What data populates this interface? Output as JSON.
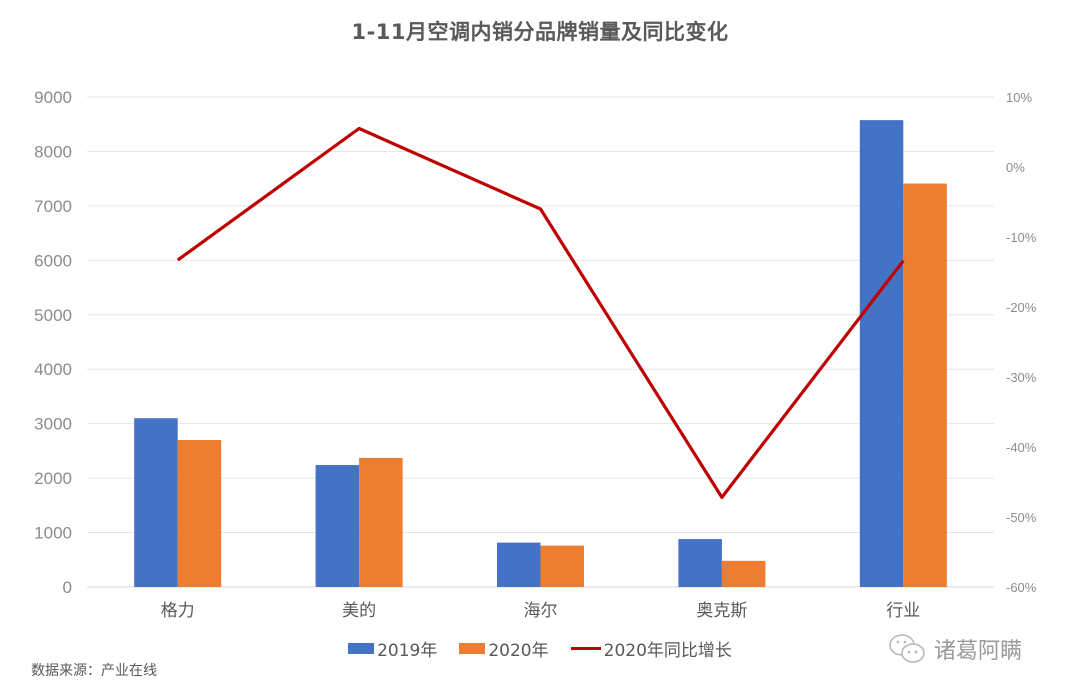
{
  "chart_data": {
    "type": "bar+line",
    "title": "1-11月空调内销分品牌销量及同比变化",
    "categories": [
      "格力",
      "美的",
      "海尔",
      "奥克斯",
      "行业"
    ],
    "series": [
      {
        "name": "2019年",
        "type": "bar",
        "axis": "left",
        "color": "#4472C4",
        "values": [
          3100,
          2240,
          815,
          880,
          8575
        ]
      },
      {
        "name": "2020年",
        "type": "bar",
        "axis": "left",
        "color": "#ED7D31",
        "values": [
          2700,
          2370,
          760,
          480,
          7410
        ]
      },
      {
        "name": "2020年同比增长",
        "type": "line",
        "axis": "right",
        "color": "#C00000",
        "values": [
          -13.3,
          5.5,
          -6.0,
          -47.2,
          -13.4
        ],
        "unit": "%"
      }
    ],
    "left_axis": {
      "min": 0,
      "max": 9000,
      "step": 1000,
      "ticks": [
        "9000",
        "8000",
        "7000",
        "6000",
        "5000",
        "4000",
        "3000",
        "2000",
        "1000",
        "0"
      ]
    },
    "right_axis": {
      "min": -60,
      "max": 10,
      "step": 10,
      "ticks": [
        "10%",
        "0%",
        "-10%",
        "-20%",
        "-30%",
        "-40%",
        "-50%",
        "-60%"
      ]
    },
    "xlabel": "",
    "ylabel": "",
    "grid": true,
    "legend_position": "bottom"
  },
  "legend": {
    "items": [
      {
        "label": "2019年",
        "kind": "bar",
        "color": "#4472C4"
      },
      {
        "label": "2020年",
        "kind": "bar",
        "color": "#ED7D31"
      },
      {
        "label": "2020年同比增长",
        "kind": "line",
        "color": "#C00000"
      }
    ]
  },
  "source": "数据来源：产业在线",
  "watermark": {
    "icon": "wechat-icon",
    "text": "诸葛阿瞒"
  }
}
